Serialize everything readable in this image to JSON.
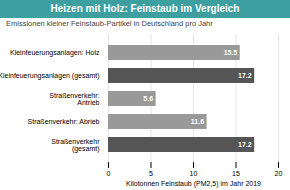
{
  "chart_data": {
    "type": "bar",
    "orientation": "horizontal",
    "title": "Heizen mit Holz: Feinstaub im Vergleich",
    "subtitle": "Emissionen kleiner Feinstaub-Partikel in Deutschland pro Jahr",
    "xlabel": "Kilotonnen Feinstaub (PM2,5) im Jahr 2019",
    "categories": [
      "Kleinfeuerungsanlagen: Holz",
      "Kleinfeuerungsanlagen (gesamt)",
      "Straßenverkehr: Antrieb",
      "Straßenverkehr: Abrieb",
      "Straßenverkehr (gesamt)"
    ],
    "values": [
      15.5,
      17.2,
      5.6,
      11.6,
      17.2
    ],
    "colors": [
      "#999999",
      "#555555",
      "#999999",
      "#999999",
      "#555555"
    ],
    "xlim": [
      0,
      20
    ],
    "xticks": [
      0,
      5,
      10,
      15,
      20
    ],
    "grid": true,
    "data_labels": true
  }
}
